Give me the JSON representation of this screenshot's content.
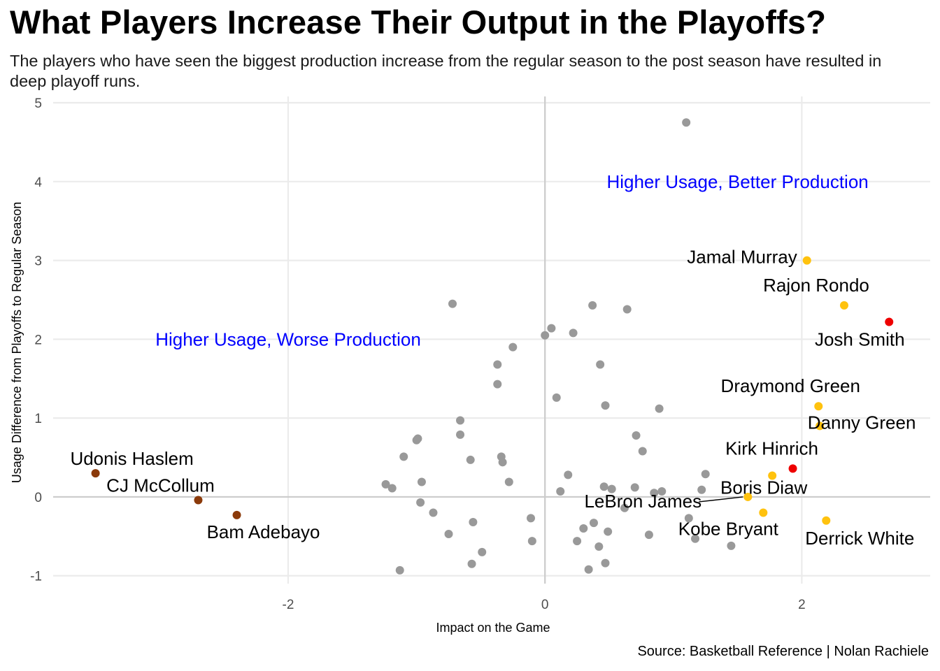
{
  "title": "What Players Increase Their Output in the Playoffs?",
  "subtitle": "The players who have seen the biggest production increase from the regular season to the post season have resulted in deep playoff runs.",
  "caption": "Source: Basketball Reference | Nolan Rachiele",
  "chart_data": {
    "type": "scatter",
    "xlabel": "Impact on the Game",
    "ylabel": "Usage Difference from Playoffs to Regular Season",
    "xlim": [
      -3.83,
      3.0
    ],
    "ylim": [
      -1.1,
      5.08
    ],
    "x_ticks": [
      -2,
      0,
      2
    ],
    "y_ticks": [
      -1,
      0,
      1,
      2,
      3,
      4,
      5
    ],
    "grid": true,
    "reference_lines": {
      "x": 0,
      "y": 0
    },
    "colors": {
      "other": "#999999",
      "gold": "#ffc20e",
      "red": "#ee0000",
      "brown": "#8b3a0a",
      "quadrant_text": "#0000ff",
      "grid": "#ebebeb",
      "zero_line": "#cccccc"
    },
    "annotations": [
      {
        "text": "Higher Usage, Better Production",
        "x": 1.5,
        "y": 4.0
      },
      {
        "text": "Higher Usage, Worse Production",
        "x": -2.0,
        "y": 2.0
      }
    ],
    "highlighted": [
      {
        "name": "Jamal Murray",
        "x": 2.04,
        "y": 3.0,
        "group": "gold"
      },
      {
        "name": "Rajon Rondo",
        "x": 2.33,
        "y": 2.43,
        "group": "gold"
      },
      {
        "name": "Josh Smith",
        "x": 2.68,
        "y": 2.22,
        "group": "red"
      },
      {
        "name": "Draymond Green",
        "x": 2.13,
        "y": 1.15,
        "group": "gold"
      },
      {
        "name": "Danny Green",
        "x": 2.14,
        "y": 0.9,
        "group": "gold"
      },
      {
        "name": "Kirk Hinrich",
        "x": 1.93,
        "y": 0.36,
        "group": "red"
      },
      {
        "name": "Boris Diaw",
        "x": 1.77,
        "y": 0.27,
        "group": "gold"
      },
      {
        "name": "LeBron James",
        "x": 1.58,
        "y": 0.0,
        "group": "gold"
      },
      {
        "name": "Kobe Bryant",
        "x": 1.7,
        "y": -0.2,
        "group": "gold"
      },
      {
        "name": "Derrick White",
        "x": 2.19,
        "y": -0.3,
        "group": "gold"
      },
      {
        "name": "Udonis Haslem",
        "x": -3.5,
        "y": 0.3,
        "group": "brown"
      },
      {
        "name": "CJ McCollum",
        "x": -2.7,
        "y": -0.04,
        "group": "brown"
      },
      {
        "name": "Bam Adebayo",
        "x": -2.4,
        "y": -0.23,
        "group": "brown"
      }
    ],
    "others": [
      [
        1.1,
        4.75
      ],
      [
        -0.72,
        2.45
      ],
      [
        0.37,
        2.43
      ],
      [
        0.64,
        2.38
      ],
      [
        0.05,
        2.14
      ],
      [
        0.22,
        2.08
      ],
      [
        0.0,
        2.05
      ],
      [
        -0.25,
        1.9
      ],
      [
        -0.37,
        1.68
      ],
      [
        0.43,
        1.68
      ],
      [
        -0.37,
        1.43
      ],
      [
        0.09,
        1.26
      ],
      [
        0.47,
        1.16
      ],
      [
        0.89,
        1.12
      ],
      [
        -0.66,
        0.97
      ],
      [
        -0.66,
        0.79
      ],
      [
        0.71,
        0.78
      ],
      [
        -0.99,
        0.74
      ],
      [
        -1.0,
        0.72
      ],
      [
        0.76,
        0.58
      ],
      [
        -1.1,
        0.51
      ],
      [
        -0.34,
        0.51
      ],
      [
        -0.58,
        0.47
      ],
      [
        -0.33,
        0.44
      ],
      [
        0.18,
        0.28
      ],
      [
        1.25,
        0.29
      ],
      [
        -0.96,
        0.19
      ],
      [
        -0.28,
        0.19
      ],
      [
        -1.24,
        0.16
      ],
      [
        -1.19,
        0.11
      ],
      [
        0.46,
        0.13
      ],
      [
        0.52,
        0.1
      ],
      [
        0.7,
        0.12
      ],
      [
        0.12,
        0.07
      ],
      [
        0.91,
        0.07
      ],
      [
        0.85,
        0.05
      ],
      [
        1.22,
        0.09
      ],
      [
        0.62,
        -0.14
      ],
      [
        -0.97,
        -0.07
      ],
      [
        -0.87,
        -0.2
      ],
      [
        -0.11,
        -0.27
      ],
      [
        1.12,
        -0.27
      ],
      [
        -0.56,
        -0.32
      ],
      [
        0.38,
        -0.33
      ],
      [
        0.3,
        -0.4
      ],
      [
        0.49,
        -0.44
      ],
      [
        -0.75,
        -0.47
      ],
      [
        0.81,
        -0.48
      ],
      [
        1.17,
        -0.53
      ],
      [
        -0.1,
        -0.56
      ],
      [
        0.25,
        -0.56
      ],
      [
        1.45,
        -0.62
      ],
      [
        0.42,
        -0.63
      ],
      [
        -0.49,
        -0.7
      ],
      [
        -0.57,
        -0.85
      ],
      [
        0.47,
        -0.84
      ],
      [
        0.34,
        -0.92
      ],
      [
        -1.13,
        -0.93
      ]
    ]
  }
}
